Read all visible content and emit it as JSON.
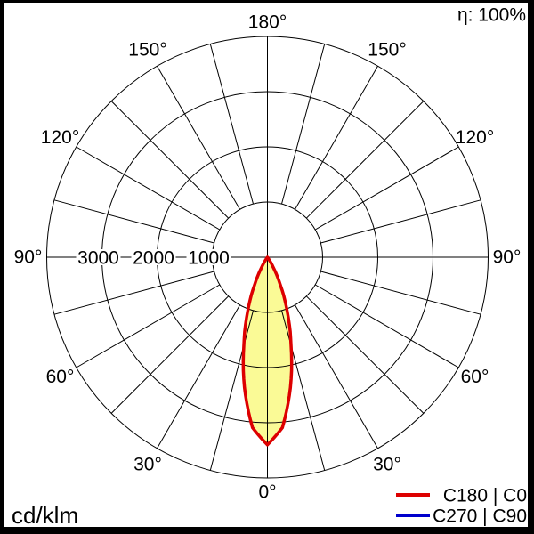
{
  "header": {
    "efficiency_label": "η: 100%"
  },
  "footer": {
    "unit_label": "cd/klm"
  },
  "legend": {
    "position": "bottom-right",
    "items": [
      {
        "label": "C180 | C0",
        "color": "#dd0000"
      },
      {
        "label": "C270 | C90",
        "color": "#0000cc"
      }
    ]
  },
  "colors": {
    "background": "#ffffff",
    "grid": "#000000",
    "frame": "#000000",
    "curve_c0": "#dd0000",
    "curve_c90": "#0000cc",
    "lobe_fill": "#fafa96"
  },
  "chart_data": {
    "type": "line",
    "subtype": "polar-photometric-intensity-distribution",
    "units": "cd/klm",
    "efficiency_percent": 100,
    "grid": true,
    "angle_grid_step_deg": 15,
    "angle_labels": [
      {
        "deg": 0,
        "label": "0°"
      },
      {
        "deg": 30,
        "label": "30°"
      },
      {
        "deg": 60,
        "label": "60°"
      },
      {
        "deg": 90,
        "label": "90°"
      },
      {
        "deg": 120,
        "label": "120°"
      },
      {
        "deg": 150,
        "label": "150°"
      },
      {
        "deg": 180,
        "label": "180°"
      }
    ],
    "radial_ticks": [
      {
        "value": 3000,
        "label": "3000"
      },
      {
        "value": 2000,
        "label": "2000"
      },
      {
        "value": 1000,
        "label": "1000"
      }
    ],
    "rings": [
      1000,
      2000,
      3000,
      4000
    ],
    "radial_max": 4000,
    "legend_position": "bottom-right",
    "series": [
      {
        "name": "C180 | C0",
        "color": "#dd0000",
        "fill_color": "#fafa96",
        "visible": true,
        "symmetric": true,
        "gamma_deg": [
          0,
          5,
          10,
          15,
          20,
          25,
          30,
          35,
          40
        ],
        "intensity_cd_klm": [
          3400,
          3100,
          2400,
          1650,
          1050,
          550,
          200,
          30,
          0
        ]
      },
      {
        "name": "C270 | C90",
        "color": "#0000cc",
        "visible": false,
        "note": "curve not visible in plot; coincides with C180 | C0"
      }
    ]
  }
}
